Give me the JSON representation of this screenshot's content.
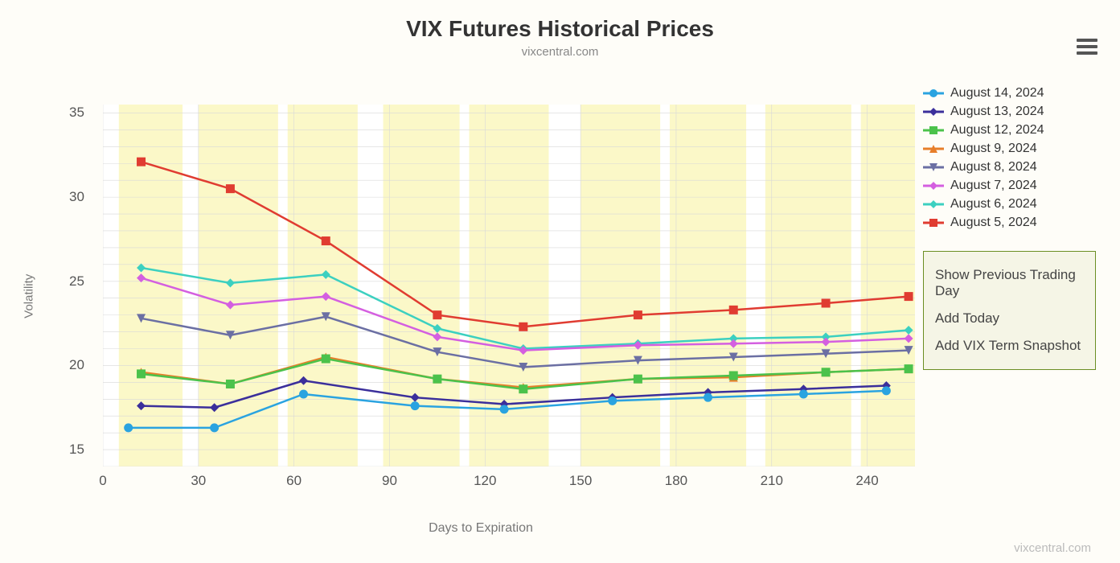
{
  "title": "VIX Futures Historical Prices",
  "subtitle": "vixcentral.com",
  "watermark": "vixcentral.com",
  "hamburger_name": "menu-icon",
  "chart": {
    "type": "line",
    "xlabel": "Days to Expiration",
    "ylabel": "Volatility",
    "xlim": [
      0,
      255
    ],
    "ylim": [
      14,
      35.5
    ],
    "xticks": [
      0,
      30,
      60,
      90,
      120,
      150,
      180,
      210,
      240
    ],
    "yticks": [
      15,
      20,
      25,
      30,
      35
    ],
    "background_color": "#ffffff",
    "band_color": "#fbf8c8",
    "grid_color": "#d8d8d8",
    "axis_text_color": "#666666",
    "title_fontsize": 28,
    "label_fontsize": 15,
    "tick_fontsize": 17,
    "line_width": 2.5,
    "marker_size": 5.5,
    "bands_x": [
      [
        5,
        25
      ],
      [
        30,
        55
      ],
      [
        58,
        80
      ],
      [
        88,
        112
      ],
      [
        115,
        140
      ],
      [
        150,
        175
      ],
      [
        178,
        202
      ],
      [
        208,
        235
      ],
      [
        238,
        255
      ]
    ],
    "x_values": [
      8,
      12,
      35,
      40,
      63,
      70,
      98,
      105,
      126,
      132,
      160,
      168,
      190,
      198,
      220,
      227,
      246,
      253
    ],
    "series": [
      {
        "label": "August 14, 2024",
        "color": "#2aa3e0",
        "marker": "circle",
        "x": [
          8,
          35,
          63,
          98,
          126,
          160,
          190,
          220,
          246
        ],
        "y": [
          16.3,
          16.3,
          18.3,
          17.6,
          17.4,
          17.9,
          18.1,
          18.3,
          18.5
        ]
      },
      {
        "label": "August 13, 2024",
        "color": "#3b2f9b",
        "marker": "diamond",
        "x": [
          12,
          35,
          63,
          98,
          126,
          160,
          190,
          220,
          246
        ],
        "y": [
          17.6,
          17.5,
          19.1,
          18.1,
          17.7,
          18.1,
          18.4,
          18.6,
          18.8
        ]
      },
      {
        "label": "August 12, 2024",
        "color": "#4bc24b",
        "marker": "square",
        "x": [
          12,
          40,
          70,
          105,
          132,
          168,
          198,
          227,
          253
        ],
        "y": [
          19.5,
          18.9,
          20.4,
          19.2,
          18.6,
          19.2,
          19.4,
          19.6,
          19.8
        ]
      },
      {
        "label": "August 9, 2024",
        "color": "#e77e2a",
        "marker": "triangle",
        "x": [
          12,
          40,
          70,
          105,
          132,
          168,
          198,
          227,
          253
        ],
        "y": [
          19.6,
          18.9,
          20.5,
          19.2,
          18.7,
          19.2,
          19.3,
          19.6,
          19.8
        ]
      },
      {
        "label": "August 8, 2024",
        "color": "#6b6fa3",
        "marker": "tri-down",
        "x": [
          12,
          40,
          70,
          105,
          132,
          168,
          198,
          227,
          253
        ],
        "y": [
          22.8,
          21.8,
          22.9,
          20.8,
          19.9,
          20.3,
          20.5,
          20.7,
          20.9
        ]
      },
      {
        "label": "August 7, 2024",
        "color": "#d45fe0",
        "marker": "diamond",
        "x": [
          12,
          40,
          70,
          105,
          132,
          168,
          198,
          227,
          253
        ],
        "y": [
          25.2,
          23.6,
          24.1,
          21.7,
          20.9,
          21.2,
          21.3,
          21.4,
          21.6
        ]
      },
      {
        "label": "August 6, 2024",
        "color": "#3cd0c0",
        "marker": "diamond",
        "x": [
          12,
          40,
          70,
          105,
          132,
          168,
          198,
          227,
          253
        ],
        "y": [
          25.8,
          24.9,
          25.4,
          22.2,
          21.0,
          21.3,
          21.6,
          21.7,
          22.1
        ]
      },
      {
        "label": "August 5, 2024",
        "color": "#e03c31",
        "marker": "square",
        "x": [
          12,
          40,
          70,
          105,
          132,
          168,
          198,
          227,
          253
        ],
        "y": [
          32.1,
          30.5,
          27.4,
          23.0,
          22.3,
          23.0,
          23.3,
          23.7,
          24.1
        ]
      }
    ]
  },
  "actions": [
    "Show Previous Trading Day",
    "Add Today",
    "Add VIX Term Snapshot"
  ]
}
